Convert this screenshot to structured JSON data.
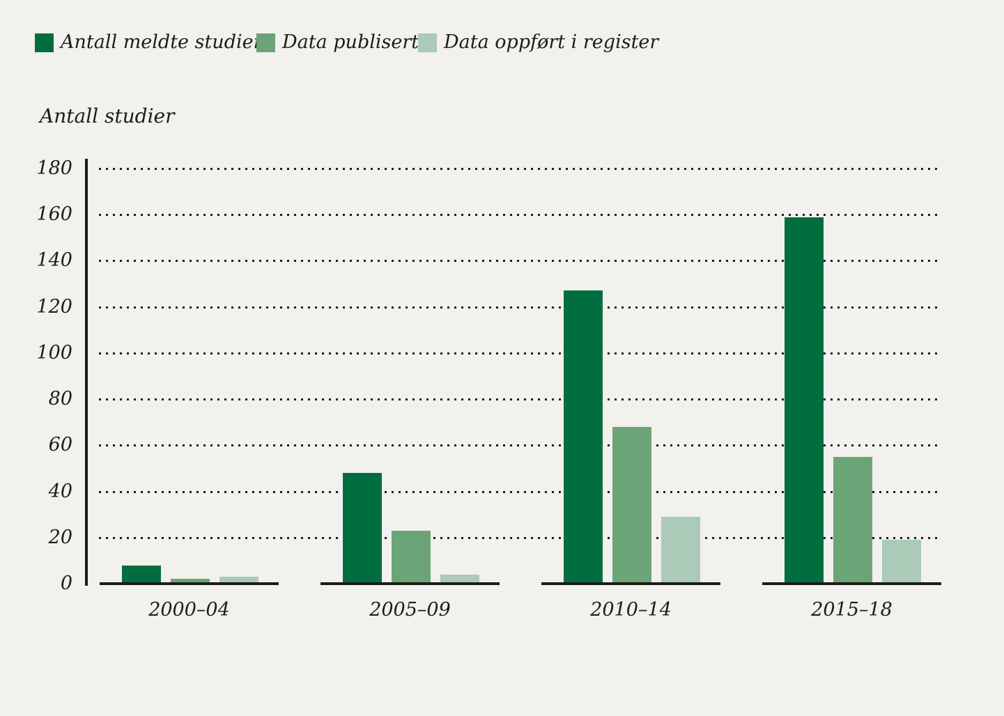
{
  "axis_title": "Antall studier",
  "colors": {
    "background": "#f2f1ee",
    "text": "#1d1c1a",
    "axis": "#1d1c1a",
    "series_dark_green": "#006e3f",
    "series_medium_green": "#6ba577",
    "series_light_green": "#abcab8"
  },
  "chart_data": {
    "type": "bar",
    "title": "",
    "ylabel": "Antall studier",
    "xlabel": "",
    "ylim": [
      0,
      180
    ],
    "yticks": [
      0,
      20,
      40,
      60,
      80,
      100,
      120,
      140,
      160,
      180
    ],
    "grid": "horizontal dotted",
    "legend_position": "top-left",
    "categories": [
      "2000–04",
      "2005–09",
      "2010–14",
      "2015–18"
    ],
    "series": [
      {
        "name": "Antall meldte studier",
        "color": "#006e3f",
        "values": [
          8,
          48,
          127,
          159
        ]
      },
      {
        "name": "Data publisert",
        "color": "#6ba577",
        "values": [
          2,
          23,
          68,
          55
        ]
      },
      {
        "name": "Data oppført i register",
        "color": "#abcab8",
        "values": [
          3,
          4,
          29,
          19
        ]
      }
    ]
  }
}
